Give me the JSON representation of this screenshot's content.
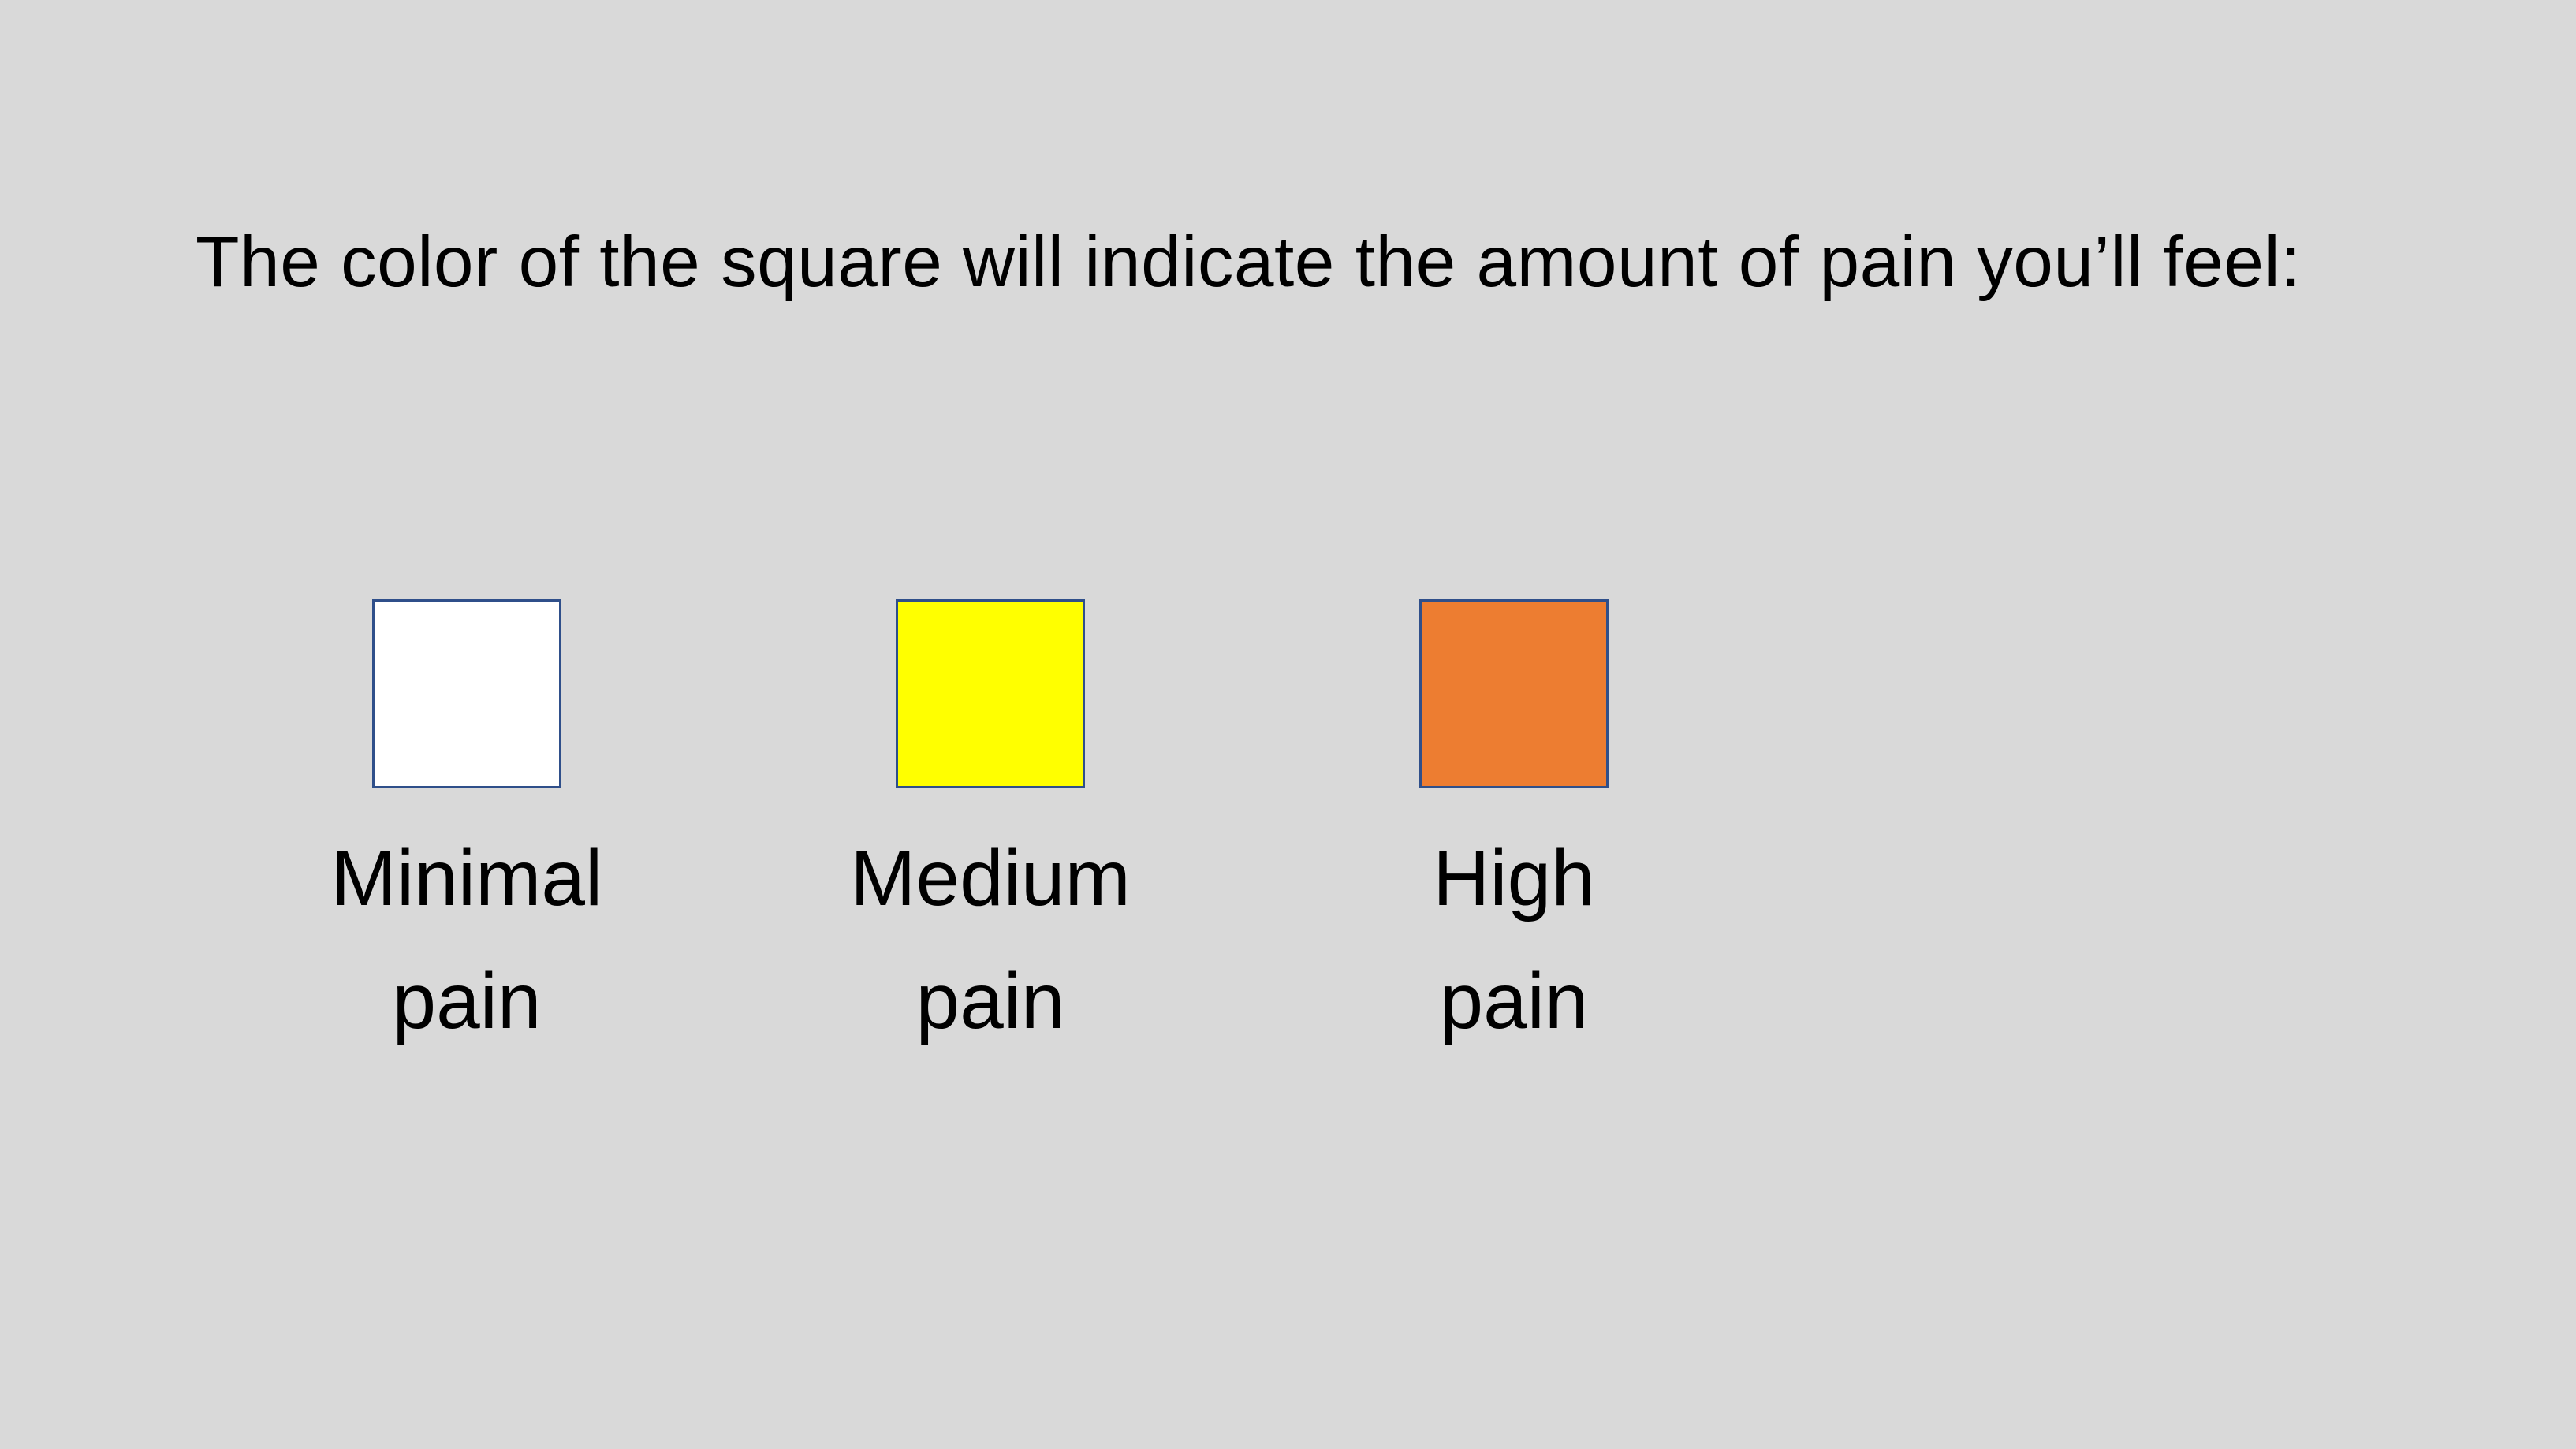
{
  "instruction": "The color of the square will indicate the amount of pain you’ll feel:",
  "legend": [
    {
      "color": "#ffffff",
      "line1": "Minimal",
      "line2": "pain"
    },
    {
      "color": "#ffff00",
      "line1": "Medium",
      "line2": "pain"
    },
    {
      "color": "#ed7d31",
      "line1": "High",
      "line2": "pain"
    }
  ],
  "colors": {
    "background": "#d9d9d9",
    "swatch_border": "#2f4f8a"
  }
}
